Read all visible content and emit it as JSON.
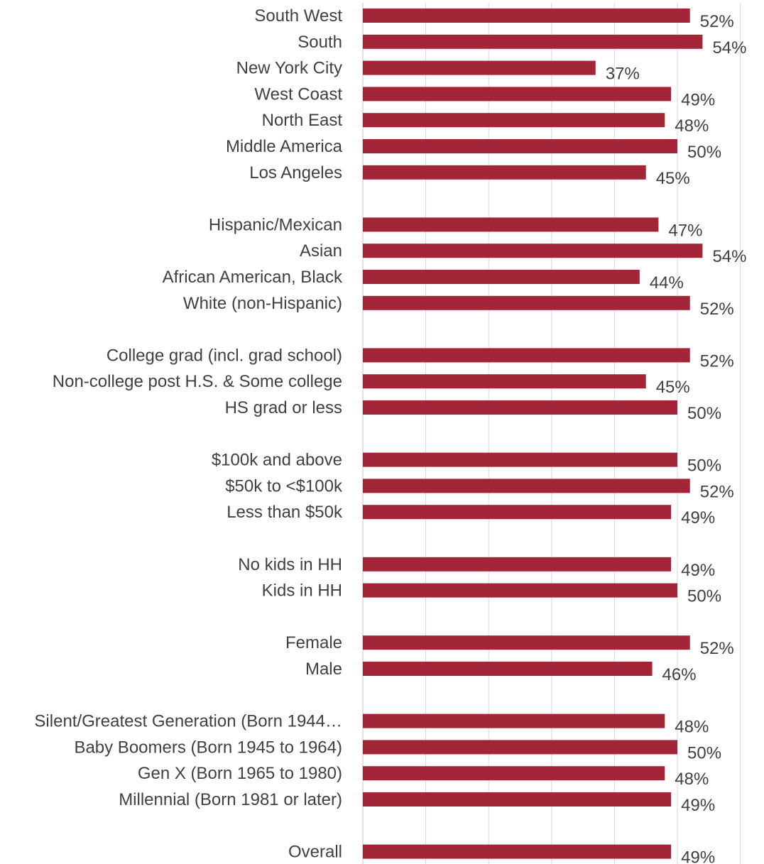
{
  "chart_data": {
    "type": "bar",
    "orientation": "horizontal",
    "grid": true,
    "xlim": [
      0,
      60
    ],
    "bar_color": "#A32638",
    "text_color": "#404040",
    "grid_color": "#d9d9d9",
    "groups": [
      {
        "items": [
          {
            "label": "South West",
            "value": 52,
            "value_label": "52%"
          },
          {
            "label": "South",
            "value": 54,
            "value_label": "54%"
          },
          {
            "label": "New York City",
            "value": 37,
            "value_label": "37%"
          },
          {
            "label": "West Coast",
            "value": 49,
            "value_label": "49%"
          },
          {
            "label": "North East",
            "value": 48,
            "value_label": "48%"
          },
          {
            "label": "Middle America",
            "value": 50,
            "value_label": "50%"
          },
          {
            "label": "Los Angeles",
            "value": 45,
            "value_label": "45%"
          }
        ]
      },
      {
        "items": [
          {
            "label": "Hispanic/Mexican",
            "value": 47,
            "value_label": "47%"
          },
          {
            "label": "Asian",
            "value": 54,
            "value_label": "54%"
          },
          {
            "label": "African American, Black",
            "value": 44,
            "value_label": "44%"
          },
          {
            "label": "White (non-Hispanic)",
            "value": 52,
            "value_label": "52%"
          }
        ]
      },
      {
        "items": [
          {
            "label": "College grad (incl. grad school)",
            "value": 52,
            "value_label": "52%"
          },
          {
            "label": "Non-college post H.S. & Some college",
            "value": 45,
            "value_label": "45%"
          },
          {
            "label": "HS grad or less",
            "value": 50,
            "value_label": "50%"
          }
        ]
      },
      {
        "items": [
          {
            "label": "$100k and above",
            "value": 50,
            "value_label": "50%"
          },
          {
            "label": "$50k to <$100k",
            "value": 52,
            "value_label": "52%"
          },
          {
            "label": "Less than $50k",
            "value": 49,
            "value_label": "49%"
          }
        ]
      },
      {
        "items": [
          {
            "label": "No kids in HH",
            "value": 49,
            "value_label": "49%"
          },
          {
            "label": "Kids in HH",
            "value": 50,
            "value_label": "50%"
          }
        ]
      },
      {
        "items": [
          {
            "label": "Female",
            "value": 52,
            "value_label": "52%"
          },
          {
            "label": "Male",
            "value": 46,
            "value_label": "46%"
          }
        ]
      },
      {
        "items": [
          {
            "label": "Silent/Greatest Generation (Born 1944…",
            "value": 48,
            "value_label": "48%"
          },
          {
            "label": "Baby Boomers (Born 1945 to 1964)",
            "value": 50,
            "value_label": "50%"
          },
          {
            "label": "Gen X (Born 1965 to 1980)",
            "value": 48,
            "value_label": "48%"
          },
          {
            "label": "Millennial (Born 1981 or later)",
            "value": 49,
            "value_label": "49%"
          }
        ]
      },
      {
        "items": [
          {
            "label": "Overall",
            "value": 49,
            "value_label": "49%"
          }
        ]
      }
    ]
  }
}
